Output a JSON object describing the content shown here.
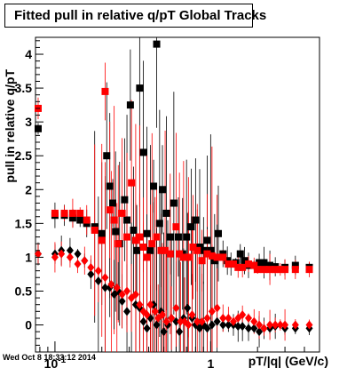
{
  "timestamp": "Wed Oct  8 18:33:12 2014",
  "chart_data": {
    "type": "scatter",
    "title": "Fitted pull in relative q/pT  Global Tracks",
    "xlabel": "pT/|q| (GeV/c)",
    "ylabel": "pull in relative q/pT",
    "x_scale": "log",
    "xlim": [
      0.075,
      5.0
    ],
    "ylim": [
      -0.4,
      4.25
    ],
    "x_tick_labels": [
      {
        "x": 0.1,
        "label": "10",
        "exponent": "-1"
      },
      {
        "x": 1,
        "label": "1",
        "exponent": ""
      }
    ],
    "y_ticks": [
      0,
      0.5,
      1,
      1.5,
      2,
      2.5,
      3,
      3.5,
      4
    ],
    "y_tick_labels": [
      "0",
      "0.5",
      "1",
      "1.5",
      "2",
      "2.5",
      "3",
      "3.5",
      "4"
    ],
    "series": [
      {
        "color": "#000000",
        "marker": "square",
        "points": [
          [
            0.078,
            2.9
          ],
          [
            0.1,
            1.62
          ],
          [
            0.115,
            1.62
          ],
          [
            0.13,
            1.58
          ],
          [
            0.145,
            1.55
          ],
          [
            0.16,
            1.5
          ],
          [
            0.18,
            1.45
          ],
          [
            0.2,
            1.35
          ],
          [
            0.215,
            2.5
          ],
          [
            0.225,
            2.05
          ],
          [
            0.235,
            1.8
          ],
          [
            0.245,
            1.38
          ],
          [
            0.26,
            1.2
          ],
          [
            0.28,
            1.85
          ],
          [
            0.29,
            1.55
          ],
          [
            0.305,
            3.25
          ],
          [
            0.32,
            1.4
          ],
          [
            0.335,
            1.1
          ],
          [
            0.35,
            3.5
          ],
          [
            0.37,
            2.55
          ],
          [
            0.39,
            1.35
          ],
          [
            0.41,
            1.1
          ],
          [
            0.43,
            2.05
          ],
          [
            0.45,
            4.15
          ],
          [
            0.47,
            1.5
          ],
          [
            0.49,
            2.0
          ],
          [
            0.52,
            1.65
          ],
          [
            0.55,
            1.3
          ],
          [
            0.58,
            1.8
          ],
          [
            0.62,
            1.3
          ],
          [
            0.66,
            1.05
          ],
          [
            0.7,
            1.3
          ],
          [
            0.75,
            1.45
          ],
          [
            0.8,
            1.55
          ],
          [
            0.85,
            1.15
          ],
          [
            0.9,
            1.1
          ],
          [
            0.95,
            1.25
          ],
          [
            1.0,
            1.1
          ],
          [
            1.06,
            0.95
          ],
          [
            1.12,
            1.35
          ],
          [
            1.2,
            1.05
          ],
          [
            1.28,
            0.95
          ],
          [
            1.35,
            0.9
          ],
          [
            1.45,
            0.92
          ],
          [
            1.55,
            1.05
          ],
          [
            1.65,
            0.95
          ],
          [
            1.75,
            0.88
          ],
          [
            1.9,
            0.88
          ],
          [
            2.05,
            0.92
          ],
          [
            2.2,
            0.92
          ],
          [
            2.4,
            0.88
          ],
          [
            2.6,
            0.86
          ],
          [
            3.0,
            0.85
          ],
          [
            3.5,
            0.88
          ],
          [
            4.3,
            0.85
          ]
        ]
      },
      {
        "color": "#ff0000",
        "marker": "square",
        "points": [
          [
            0.078,
            3.2
          ],
          [
            0.1,
            1.65
          ],
          [
            0.115,
            1.65
          ],
          [
            0.13,
            1.65
          ],
          [
            0.145,
            1.65
          ],
          [
            0.16,
            1.55
          ],
          [
            0.18,
            1.4
          ],
          [
            0.2,
            1.25
          ],
          [
            0.21,
            3.45
          ],
          [
            0.225,
            1.7
          ],
          [
            0.24,
            1.55
          ],
          [
            0.255,
            1.2
          ],
          [
            0.27,
            1.65
          ],
          [
            0.29,
            1.3
          ],
          [
            0.31,
            2.1
          ],
          [
            0.33,
            1.25
          ],
          [
            0.35,
            1.3
          ],
          [
            0.37,
            1.15
          ],
          [
            0.39,
            1.0
          ],
          [
            0.42,
            1.2
          ],
          [
            0.45,
            1.3
          ],
          [
            0.48,
            1.1
          ],
          [
            0.51,
            1.1
          ],
          [
            0.55,
            1.05
          ],
          [
            0.6,
            1.45
          ],
          [
            0.63,
            1.05
          ],
          [
            0.67,
            1.0
          ],
          [
            0.72,
            1.0
          ],
          [
            0.77,
            1.15
          ],
          [
            0.82,
            1.1
          ],
          [
            0.88,
            0.95
          ],
          [
            0.95,
            1.05
          ],
          [
            1.02,
            1.02
          ],
          [
            1.1,
            1.0
          ],
          [
            1.2,
            1.0
          ],
          [
            1.3,
            0.9
          ],
          [
            1.4,
            0.9
          ],
          [
            1.5,
            0.85
          ],
          [
            1.6,
            0.85
          ],
          [
            1.75,
            0.9
          ],
          [
            1.9,
            0.88
          ],
          [
            2.0,
            0.82
          ],
          [
            2.2,
            0.82
          ],
          [
            2.4,
            0.82
          ],
          [
            2.6,
            0.82
          ],
          [
            2.8,
            0.82
          ],
          [
            3.0,
            0.82
          ],
          [
            3.5,
            0.82
          ],
          [
            4.3,
            0.82
          ]
        ]
      },
      {
        "color": "#000000",
        "marker": "diamond",
        "points": [
          [
            0.078,
            1.05
          ],
          [
            0.1,
            1.05
          ],
          [
            0.11,
            1.1
          ],
          [
            0.125,
            1.1
          ],
          [
            0.14,
            1.05
          ],
          [
            0.155,
            0.95
          ],
          [
            0.17,
            0.75
          ],
          [
            0.19,
            0.65
          ],
          [
            0.21,
            0.55
          ],
          [
            0.225,
            0.55
          ],
          [
            0.24,
            0.45
          ],
          [
            0.255,
            0.5
          ],
          [
            0.27,
            0.35
          ],
          [
            0.29,
            0.2
          ],
          [
            0.31,
            0.4
          ],
          [
            0.33,
            0.3
          ],
          [
            0.35,
            0.25
          ],
          [
            0.37,
            0.05
          ],
          [
            0.39,
            -0.05
          ],
          [
            0.41,
            0.1
          ],
          [
            0.43,
            0.3
          ],
          [
            0.45,
            0.0
          ],
          [
            0.48,
            0.2
          ],
          [
            0.5,
            -0.1
          ],
          [
            0.53,
            0.0
          ],
          [
            0.56,
            0.1
          ],
          [
            0.6,
            0.05
          ],
          [
            0.63,
            -0.1
          ],
          [
            0.67,
            0.1
          ],
          [
            0.71,
            0.25
          ],
          [
            0.76,
            0.1
          ],
          [
            0.8,
            0.0
          ],
          [
            0.85,
            -0.05
          ],
          [
            0.9,
            0.0
          ],
          [
            0.95,
            -0.05
          ],
          [
            1.02,
            0.0
          ],
          [
            1.1,
            0.05
          ],
          [
            1.2,
            0.0
          ],
          [
            1.3,
            0.0
          ],
          [
            1.4,
            0.0
          ],
          [
            1.5,
            -0.02
          ],
          [
            1.6,
            -0.02
          ],
          [
            1.75,
            -0.05
          ],
          [
            1.9,
            -0.05
          ],
          [
            2.05,
            -0.1
          ],
          [
            2.2,
            -0.05
          ],
          [
            2.4,
            -0.05
          ],
          [
            2.6,
            -0.02
          ],
          [
            3.0,
            -0.05
          ],
          [
            3.5,
            -0.05
          ],
          [
            4.3,
            -0.05
          ]
        ]
      },
      {
        "color": "#ff0000",
        "marker": "diamond",
        "points": [
          [
            0.078,
            1.05
          ],
          [
            0.1,
            1.0
          ],
          [
            0.11,
            1.05
          ],
          [
            0.125,
            1.0
          ],
          [
            0.14,
            0.9
          ],
          [
            0.155,
            0.95
          ],
          [
            0.17,
            0.85
          ],
          [
            0.19,
            0.8
          ],
          [
            0.21,
            0.7
          ],
          [
            0.23,
            0.6
          ],
          [
            0.25,
            0.55
          ],
          [
            0.27,
            0.45
          ],
          [
            0.29,
            0.5
          ],
          [
            0.31,
            0.4
          ],
          [
            0.33,
            0.45
          ],
          [
            0.35,
            0.3
          ],
          [
            0.37,
            0.2
          ],
          [
            0.39,
            0.15
          ],
          [
            0.41,
            0.3
          ],
          [
            0.44,
            0.2
          ],
          [
            0.46,
            0.1
          ],
          [
            0.49,
            0.15
          ],
          [
            0.52,
            0.05
          ],
          [
            0.56,
            0.1
          ],
          [
            0.6,
            0.25
          ],
          [
            0.64,
            0.05
          ],
          [
            0.68,
            0.05
          ],
          [
            0.72,
            0.0
          ],
          [
            0.76,
            0.15
          ],
          [
            0.82,
            0.05
          ],
          [
            0.88,
            0.05
          ],
          [
            0.95,
            0.1
          ],
          [
            1.02,
            0.2
          ],
          [
            1.1,
            0.25
          ],
          [
            1.2,
            0.1
          ],
          [
            1.3,
            0.1
          ],
          [
            1.4,
            0.05
          ],
          [
            1.5,
            0.1
          ],
          [
            1.6,
            0.15
          ],
          [
            1.75,
            0.1
          ],
          [
            1.9,
            0.05
          ],
          [
            2.05,
            0.0
          ],
          [
            2.2,
            -0.05
          ],
          [
            2.4,
            0.0
          ],
          [
            2.6,
            0.0
          ],
          [
            2.8,
            0.0
          ],
          [
            3.0,
            0.0
          ],
          [
            3.5,
            0.0
          ],
          [
            4.3,
            0.0
          ]
        ]
      }
    ]
  }
}
